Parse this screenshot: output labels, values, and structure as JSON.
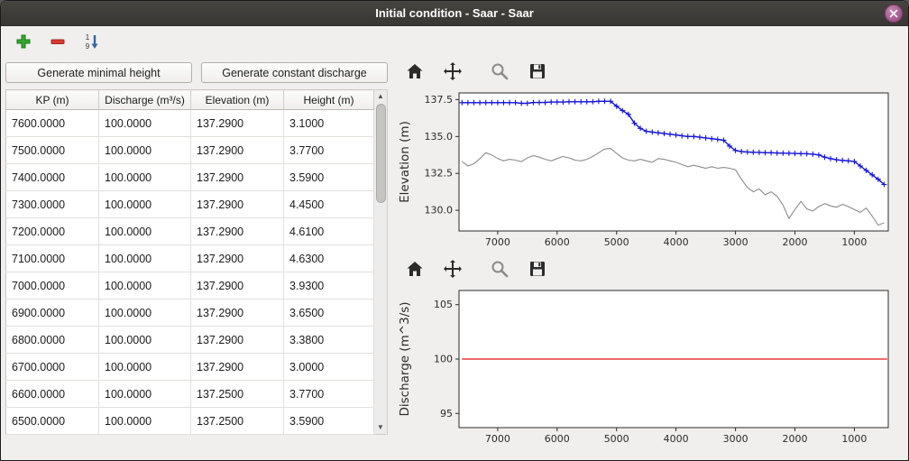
{
  "window": {
    "title": "Initial condition - Saar - Saar"
  },
  "edit_toolbar": {
    "add_tooltip": "Add row",
    "remove_tooltip": "Remove row",
    "sort_tooltip": "Sort rows"
  },
  "left_panel": {
    "buttons": [
      {
        "label": "Generate minimal height"
      },
      {
        "label": "Generate constant discharge"
      }
    ],
    "table": {
      "columns": [
        "KP (m)",
        "Discharge (m³/s)",
        "Elevation (m)",
        "Height (m)"
      ],
      "rows": [
        [
          "7600.0000",
          "100.0000",
          "137.2900",
          "3.1000"
        ],
        [
          "7500.0000",
          "100.0000",
          "137.2900",
          "3.7700"
        ],
        [
          "7400.0000",
          "100.0000",
          "137.2900",
          "3.5900"
        ],
        [
          "7300.0000",
          "100.0000",
          "137.2900",
          "4.4500"
        ],
        [
          "7200.0000",
          "100.0000",
          "137.2900",
          "4.6100"
        ],
        [
          "7100.0000",
          "100.0000",
          "137.2900",
          "4.6300"
        ],
        [
          "7000.0000",
          "100.0000",
          "137.2900",
          "3.9300"
        ],
        [
          "6900.0000",
          "100.0000",
          "137.2900",
          "3.6500"
        ],
        [
          "6800.0000",
          "100.0000",
          "137.2900",
          "3.3800"
        ],
        [
          "6700.0000",
          "100.0000",
          "137.2900",
          "3.0000"
        ],
        [
          "6600.0000",
          "100.0000",
          "137.2500",
          "3.7700"
        ],
        [
          "6500.0000",
          "100.0000",
          "137.2500",
          "3.5900"
        ]
      ]
    }
  },
  "chart_data": [
    {
      "type": "line",
      "title": "",
      "xlabel": "",
      "ylabel": "Elevation (m)",
      "ylabel_color": "#0a8a0a",
      "xlim": [
        7650,
        430
      ],
      "ylim": [
        128.6,
        137.95
      ],
      "grid": false,
      "xtick_values": [
        7000,
        6000,
        5000,
        4000,
        3000,
        2000,
        1000
      ],
      "xtick_labels": [
        "7000",
        "6000",
        "5000",
        "4000",
        "3000",
        "2000",
        "1000"
      ],
      "ytick_values": [
        130.0,
        132.5,
        135.0,
        137.5
      ],
      "ytick_labels": [
        "130.0",
        "132.5",
        "135.0",
        "137.5"
      ],
      "x": [
        7600,
        7500,
        7400,
        7300,
        7200,
        7100,
        7000,
        6900,
        6800,
        6700,
        6600,
        6500,
        6400,
        6300,
        6200,
        6100,
        6000,
        5900,
        5800,
        5700,
        5600,
        5500,
        5400,
        5300,
        5200,
        5100,
        5000,
        4900,
        4800,
        4700,
        4600,
        4500,
        4400,
        4300,
        4200,
        4100,
        4000,
        3900,
        3800,
        3700,
        3600,
        3500,
        3400,
        3300,
        3200,
        3100,
        3000,
        2900,
        2800,
        2700,
        2600,
        2500,
        2400,
        2300,
        2200,
        2100,
        2000,
        1900,
        1800,
        1700,
        1600,
        1500,
        1400,
        1300,
        1200,
        1100,
        1000,
        900,
        800,
        700,
        600,
        500
      ],
      "series": [
        {
          "name": "bottom-elevation",
          "color": "#8c8c8c",
          "width": 1.1,
          "y": [
            133.3,
            133.0,
            133.15,
            133.5,
            133.9,
            133.75,
            133.5,
            133.35,
            133.45,
            133.4,
            133.3,
            133.55,
            133.7,
            133.6,
            133.45,
            133.35,
            133.5,
            133.65,
            133.55,
            133.4,
            133.35,
            133.45,
            133.65,
            133.9,
            134.15,
            134.2,
            133.85,
            133.55,
            133.4,
            133.35,
            133.45,
            133.35,
            133.25,
            133.5,
            133.45,
            133.35,
            133.25,
            133.1,
            132.95,
            133.05,
            132.95,
            132.85,
            132.95,
            132.85,
            132.9,
            132.85,
            132.75,
            132.1,
            131.55,
            131.25,
            131.45,
            131.05,
            131.25,
            130.95,
            130.35,
            129.45,
            130.05,
            130.6,
            130.1,
            129.95,
            130.25,
            130.45,
            130.3,
            130.2,
            130.4,
            130.25,
            130.05,
            129.85,
            130.15,
            129.6,
            129.0,
            129.15
          ]
        },
        {
          "name": "water-elevation",
          "color": "#1414dd",
          "width": 1.4,
          "marker": "+",
          "y": [
            137.29,
            137.29,
            137.29,
            137.29,
            137.29,
            137.29,
            137.29,
            137.29,
            137.29,
            137.29,
            137.25,
            137.25,
            137.3,
            137.3,
            137.3,
            137.33,
            137.33,
            137.33,
            137.35,
            137.35,
            137.35,
            137.35,
            137.35,
            137.38,
            137.38,
            137.38,
            137.05,
            136.75,
            136.5,
            135.9,
            135.55,
            135.35,
            135.3,
            135.25,
            135.2,
            135.15,
            135.1,
            135.05,
            135.0,
            135.0,
            134.95,
            134.9,
            134.85,
            134.8,
            134.75,
            134.35,
            134.05,
            133.98,
            133.95,
            133.93,
            133.92,
            133.9,
            133.9,
            133.88,
            133.87,
            133.86,
            133.85,
            133.84,
            133.83,
            133.8,
            133.75,
            133.6,
            133.5,
            133.42,
            133.38,
            133.35,
            133.3,
            133.0,
            132.7,
            132.4,
            132.1,
            131.75
          ]
        }
      ]
    },
    {
      "type": "line",
      "title": "",
      "xlabel": "",
      "ylabel": "Discharge (m^3/s)",
      "ylabel_color": "#0a8a0a",
      "xlim": [
        7650,
        430
      ],
      "ylim": [
        93.7,
        106.3
      ],
      "grid": false,
      "xtick_values": [
        7000,
        6000,
        5000,
        4000,
        3000,
        2000,
        1000
      ],
      "xtick_labels": [
        "7000",
        "6000",
        "5000",
        "4000",
        "3000",
        "2000",
        "1000"
      ],
      "ytick_values": [
        95,
        100,
        105
      ],
      "ytick_labels": [
        "95",
        "100",
        "105"
      ],
      "x": [
        7600,
        450
      ],
      "series": [
        {
          "name": "constant-discharge",
          "color": "#e81414",
          "width": 1.3,
          "y": [
            100,
            100
          ]
        }
      ]
    }
  ]
}
